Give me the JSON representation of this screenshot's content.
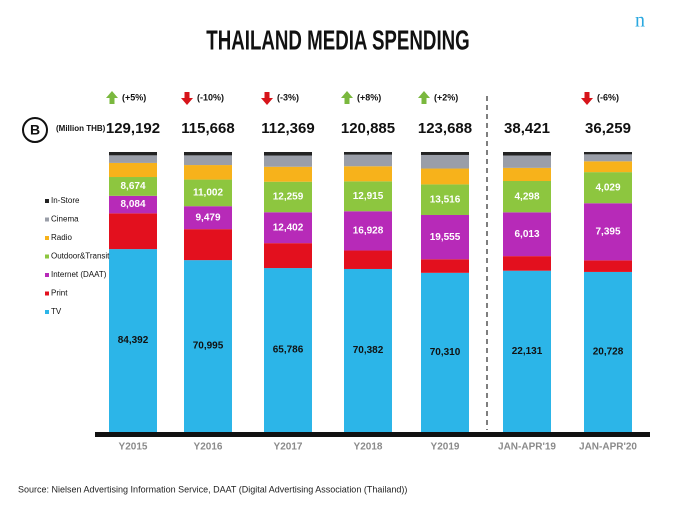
{
  "chart_data": {
    "type": "stacked-bar-100",
    "title": "THAILAND MEDIA SPENDING",
    "unit_label": "(Million THB)",
    "badge": "B",
    "logo": "n",
    "source": "Source: Nielsen Advertising Information Service, DAAT  (Digital Advertising Association (Thailand))",
    "categories": [
      "Y2015",
      "Y2016",
      "Y2017",
      "Y2018",
      "Y2019",
      "JAN-APR'19",
      "JAN-APR'20"
    ],
    "totals": [
      {
        "value": 129192,
        "label": "129,192"
      },
      {
        "value": 115668,
        "label": "115,668"
      },
      {
        "value": 112369,
        "label": "112,369"
      },
      {
        "value": 120885,
        "label": "120,885"
      },
      {
        "value": 123688,
        "label": "123,688"
      },
      {
        "value": 38421,
        "label": "38,421"
      },
      {
        "value": 36259,
        "label": "36,259"
      }
    ],
    "changes": [
      "(+5%)",
      "(-10%)",
      "(-3%)",
      "(+8%)",
      "(+2%)",
      null,
      "(-6%)"
    ],
    "series": [
      {
        "name": "TV",
        "color": "#2cb5e8",
        "values": [
          84392,
          70995,
          65786,
          70382,
          70310,
          22131,
          20728
        ],
        "value_labels": [
          "84,392",
          "70,995",
          "65,786",
          "70,382",
          "70,310",
          "22,131",
          "20,728"
        ]
      },
      {
        "name": "Print",
        "color": "#e3101e",
        "values": [
          16500,
          12800,
          10000,
          8000,
          6000,
          2000,
          1500
        ]
      },
      {
        "name": "Internet (DAAT)",
        "color": "#b72ab8",
        "values": [
          8084,
          9479,
          12402,
          16928,
          19555,
          6013,
          7395
        ],
        "value_labels": [
          "8,084",
          "9,479",
          "12,402",
          "16,928",
          "19,555",
          "6,013",
          "7,395"
        ]
      },
      {
        "name": "Outdoor&Transit",
        "color": "#8dc63f",
        "values": [
          8674,
          11002,
          12259,
          12915,
          13516,
          4298,
          4029
        ],
        "value_labels": [
          "8,674",
          "11,002",
          "12,259",
          "12,915",
          "13,516",
          "4,298",
          "4,029"
        ]
      },
      {
        "name": "Radio",
        "color": "#f7b21b",
        "values": [
          6500,
          6000,
          6000,
          6500,
          7000,
          1800,
          1400
        ]
      },
      {
        "name": "Cinema",
        "color": "#9a9ea8",
        "values": [
          3500,
          4000,
          4500,
          5000,
          6000,
          1700,
          900
        ]
      },
      {
        "name": "In-Store",
        "color": "#222222",
        "values": [
          1542,
          1392,
          1422,
          1160,
          1307,
          479,
          307
        ]
      }
    ]
  }
}
